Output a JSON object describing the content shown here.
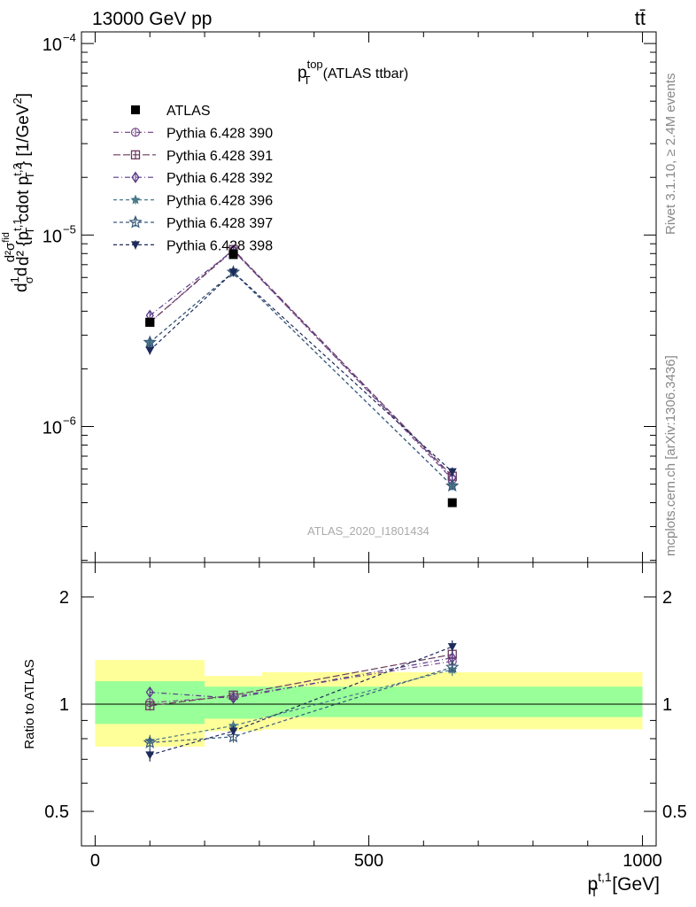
{
  "header": {
    "left": "13000 GeV pp",
    "right": "tt̄"
  },
  "plot_label": {
    "main": "p",
    "sup": "top",
    "sub": "T",
    "rest": "(ATLAS ttbar)"
  },
  "analysis_id": "ATLAS_2020_I1801434",
  "side_labels": {
    "rivet": "Rivet 3.1.10, ≥ 2.4M events",
    "mcplots": "mcplots.cern.ch [arXiv:1306.3436]"
  },
  "ylabel_top": "d¹/σ d²σ^fid / d²{p_T^t,1 cdot p_T^t,2} [1/GeV²]",
  "ylabel_top_parts": {
    "frac_num": "d",
    "frac_sigma": "σ",
    "frac_one": "1",
    "d2sigma": "d²σ",
    "fid": "fid",
    "denom": "d² {p",
    "denom_sup": "t,1",
    "denom_mid": "cdot p",
    "denom_sup2": "t,2",
    "T": "T",
    "unit": "} [1/GeV",
    "unit_sup": "2",
    "unit_end": "]"
  },
  "ylabel_bottom": "Ratio to ATLAS",
  "xlabel": {
    "p": "p",
    "sup": "t,1",
    "sub": "T",
    "unit": "[GeV]"
  },
  "colors": {
    "band_inner": "#99ff99",
    "band_outer": "#ffff99",
    "data": "#000000",
    "s390": "#7b4f8f",
    "s391": "#6b3a5c",
    "s392": "#5a3a8a",
    "s396": "#4a7a8a",
    "s397": "#3a5a7a",
    "s398": "#1e2a5a"
  },
  "chart_data": {
    "type": "line",
    "x_bins": [
      [
        0,
        200
      ],
      [
        200,
        305
      ],
      [
        305,
        1000
      ]
    ],
    "x": [
      100,
      252.5,
      652.5
    ],
    "xlim": [
      -25,
      1025
    ],
    "x_ticks": [
      0,
      500,
      1000
    ],
    "x_tick_labels": [
      "0",
      "500",
      "1000"
    ],
    "main_ylim": [
      1.95e-07,
      0.000115
    ],
    "main_log": true,
    "main_y_ticks": [
      1e-06,
      1e-05,
      0.0001
    ],
    "main_y_tick_labels": [
      "10",
      "10",
      "10"
    ],
    "main_y_tick_exps": [
      "−6",
      "−5",
      "−4"
    ],
    "ratio_ylim": [
      0.4,
      2.5
    ],
    "ratio_log": true,
    "ratio_y_ticks": [
      0.5,
      1,
      2
    ],
    "ratio_y_tick_labels": [
      "0.5",
      "1",
      "2"
    ],
    "data": {
      "name": "ATLAS",
      "values": [
        3.5e-06,
        7.9e-06,
        4e-07
      ],
      "band_inner": [
        [
          0.88,
          1.16
        ],
        [
          0.91,
          1.12
        ],
        [
          0.92,
          1.12
        ]
      ],
      "band_outer": [
        [
          0.76,
          1.33
        ],
        [
          0.84,
          1.2
        ],
        [
          0.85,
          1.23
        ]
      ]
    },
    "series": [
      {
        "name": "Pythia 6.428 390",
        "marker": "circle-open",
        "dash": "6,3,1,3",
        "values": [
          3.5e-06,
          8.3e-06,
          5.3e-07
        ],
        "ratio": [
          1.01,
          1.05,
          1.32
        ],
        "ratio_err": [
          0.03,
          0.03,
          0.05
        ]
      },
      {
        "name": "Pythia 6.428 391",
        "marker": "square-open",
        "dash": "8,3",
        "values": [
          3.5e-06,
          8.4e-06,
          5.5e-07
        ],
        "ratio": [
          0.99,
          1.06,
          1.38
        ],
        "ratio_err": [
          0.03,
          0.03,
          0.05
        ]
      },
      {
        "name": "Pythia 6.428 392",
        "marker": "diamond-open",
        "dash": "6,3,1,3",
        "values": [
          3.8e-06,
          8.3e-06,
          5.4e-07
        ],
        "ratio": [
          1.08,
          1.04,
          1.35
        ],
        "ratio_err": [
          0.03,
          0.03,
          0.05
        ]
      },
      {
        "name": "Pythia 6.428 396",
        "marker": "star-filled",
        "dash": "4,3",
        "values": [
          2.75e-06,
          6.4e-06,
          4.9e-07
        ],
        "ratio": [
          0.79,
          0.87,
          1.25
        ],
        "ratio_err": [
          0.03,
          0.03,
          0.05
        ]
      },
      {
        "name": "Pythia 6.428 397",
        "marker": "star-open",
        "dash": "4,3",
        "values": [
          2.75e-06,
          6.4e-06,
          4.9e-07
        ],
        "ratio": [
          0.78,
          0.81,
          1.27
        ],
        "ratio_err": [
          0.03,
          0.03,
          0.05
        ]
      },
      {
        "name": "Pythia 6.428 398",
        "marker": "triangle-down-filled",
        "dash": "4,3",
        "values": [
          2.5e-06,
          6.4e-06,
          5.8e-07
        ],
        "ratio": [
          0.72,
          0.84,
          1.45
        ],
        "ratio_err": [
          0.03,
          0.03,
          0.06
        ]
      }
    ]
  }
}
